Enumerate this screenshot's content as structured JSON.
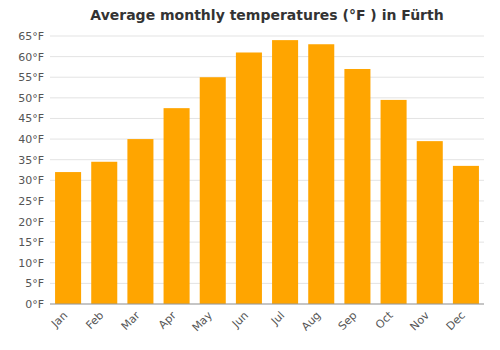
{
  "chart_data": {
    "type": "bar",
    "title": "Average monthly temperatures (°F ) in Fürth",
    "categories": [
      "Jan",
      "Feb",
      "Mar",
      "Apr",
      "May",
      "Jun",
      "Jul",
      "Aug",
      "Sep",
      "Oct",
      "Nov",
      "Dec"
    ],
    "values": [
      32,
      34.5,
      40,
      47.5,
      55,
      61,
      64,
      63,
      57,
      49.5,
      39.5,
      33.5
    ],
    "color": "#FFA500",
    "ylim": [
      0,
      65
    ],
    "yticks": [
      {
        "value": 0,
        "label": "0°F"
      },
      {
        "value": 5,
        "label": "5°F"
      },
      {
        "value": 10,
        "label": "10°F"
      },
      {
        "value": 15,
        "label": "15°F"
      },
      {
        "value": 20,
        "label": "20°F"
      },
      {
        "value": 25,
        "label": "25°F"
      },
      {
        "value": 30,
        "label": "30°F"
      },
      {
        "value": 35,
        "label": "35°F"
      },
      {
        "value": 40,
        "label": "40°F"
      },
      {
        "value": 45,
        "label": "45°F"
      },
      {
        "value": 50,
        "label": "50°F"
      },
      {
        "value": 55,
        "label": "55°F"
      },
      {
        "value": 60,
        "label": "60°F"
      },
      {
        "value": 65,
        "label": "65°F"
      }
    ],
    "grid": true
  }
}
